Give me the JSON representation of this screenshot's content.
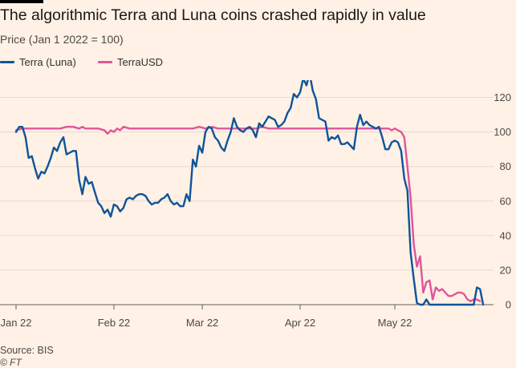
{
  "header": {
    "title": "The algorithmic Terra and Luna coins crashed rapidly in value",
    "subtitle": "Price (Jan 1 2022 = 100)"
  },
  "footer": {
    "source": "Source: BIS",
    "credit": "© FT"
  },
  "colors": {
    "background": "#fff1e5",
    "terra_luna": "#0f5499",
    "terrausd": "#e0559a",
    "gridline": "#e6d9ce",
    "axis_text": "#4d4845"
  },
  "chart_data": {
    "type": "line",
    "title": "The algorithmic Terra and Luna coins crashed rapidly in value",
    "subtitle": "Price (Jan 1 2022 = 100)",
    "ylim": [
      0,
      130
    ],
    "yticks": [
      0,
      20,
      40,
      60,
      80,
      100,
      120
    ],
    "xticks": [
      {
        "label": "Jan 22",
        "day": 0
      },
      {
        "label": "Feb 22",
        "day": 31
      },
      {
        "label": "Mar 22",
        "day": 59
      },
      {
        "label": "Apr 22",
        "day": 90
      },
      {
        "label": "May 22",
        "day": 120
      }
    ],
    "x_unit": "days since Jan 1 2022",
    "grid": true,
    "legend_position": "top-left",
    "series": [
      {
        "name": "Terra (Luna)",
        "color": "#0f5499",
        "points": [
          [
            0,
            100
          ],
          [
            1,
            103
          ],
          [
            2,
            103
          ],
          [
            3,
            97
          ],
          [
            4,
            85
          ],
          [
            5,
            86
          ],
          [
            6,
            79
          ],
          [
            7,
            73
          ],
          [
            8,
            77
          ],
          [
            9,
            76
          ],
          [
            10,
            80
          ],
          [
            11,
            85
          ],
          [
            12,
            91
          ],
          [
            13,
            89
          ],
          [
            14,
            94
          ],
          [
            15,
            97
          ],
          [
            16,
            87
          ],
          [
            17,
            88
          ],
          [
            18,
            89
          ],
          [
            19,
            89
          ],
          [
            20,
            72
          ],
          [
            21,
            64
          ],
          [
            22,
            74
          ],
          [
            23,
            70
          ],
          [
            24,
            71
          ],
          [
            25,
            65
          ],
          [
            26,
            59
          ],
          [
            27,
            57
          ],
          [
            28,
            53
          ],
          [
            29,
            55
          ],
          [
            30,
            51
          ],
          [
            31,
            58
          ],
          [
            32,
            57
          ],
          [
            33,
            54
          ],
          [
            34,
            56
          ],
          [
            35,
            61
          ],
          [
            36,
            62
          ],
          [
            37,
            61
          ],
          [
            38,
            63
          ],
          [
            39,
            64
          ],
          [
            40,
            64
          ],
          [
            41,
            63
          ],
          [
            42,
            60
          ],
          [
            43,
            58
          ],
          [
            44,
            59
          ],
          [
            45,
            59
          ],
          [
            46,
            61
          ],
          [
            47,
            62
          ],
          [
            48,
            64
          ],
          [
            49,
            60
          ],
          [
            50,
            58
          ],
          [
            51,
            59
          ],
          [
            52,
            57
          ],
          [
            53,
            57
          ],
          [
            54,
            64
          ],
          [
            55,
            60
          ],
          [
            56,
            84
          ],
          [
            57,
            80
          ],
          [
            58,
            92
          ],
          [
            59,
            88
          ],
          [
            60,
            100
          ],
          [
            61,
            103
          ],
          [
            62,
            102
          ],
          [
            63,
            97
          ],
          [
            64,
            95
          ],
          [
            65,
            91
          ],
          [
            66,
            89
          ],
          [
            67,
            95
          ],
          [
            68,
            100
          ],
          [
            69,
            108
          ],
          [
            70,
            103
          ],
          [
            71,
            101
          ],
          [
            72,
            100
          ],
          [
            73,
            102
          ],
          [
            74,
            103
          ],
          [
            75,
            101
          ],
          [
            76,
            97
          ],
          [
            77,
            105
          ],
          [
            78,
            103
          ],
          [
            79,
            106
          ],
          [
            80,
            109
          ],
          [
            81,
            108
          ],
          [
            82,
            107
          ],
          [
            83,
            103
          ],
          [
            84,
            104
          ],
          [
            85,
            106
          ],
          [
            86,
            111
          ],
          [
            87,
            114
          ],
          [
            88,
            122
          ],
          [
            89,
            120
          ],
          [
            90,
            123
          ],
          [
            91,
            131
          ],
          [
            92,
            127
          ],
          [
            93,
            134
          ],
          [
            94,
            124
          ],
          [
            95,
            119
          ],
          [
            96,
            108
          ],
          [
            97,
            107
          ],
          [
            98,
            106
          ],
          [
            99,
            95
          ],
          [
            100,
            97
          ],
          [
            101,
            96
          ],
          [
            102,
            98
          ],
          [
            103,
            93
          ],
          [
            104,
            93
          ],
          [
            105,
            94
          ],
          [
            106,
            92
          ],
          [
            107,
            90
          ],
          [
            108,
            103
          ],
          [
            109,
            110
          ],
          [
            110,
            104
          ],
          [
            111,
            106
          ],
          [
            112,
            104
          ],
          [
            113,
            103
          ],
          [
            114,
            102
          ],
          [
            115,
            103
          ],
          [
            116,
            97
          ],
          [
            117,
            90
          ],
          [
            118,
            90
          ],
          [
            119,
            94
          ],
          [
            120,
            95
          ],
          [
            121,
            94
          ],
          [
            122,
            89
          ],
          [
            123,
            73
          ],
          [
            124,
            66
          ],
          [
            125,
            30
          ],
          [
            126,
            15
          ],
          [
            127,
            1
          ],
          [
            128,
            0
          ],
          [
            129,
            0
          ],
          [
            130,
            3
          ],
          [
            131,
            0
          ],
          [
            132,
            0
          ],
          [
            133,
            0
          ],
          [
            134,
            0
          ],
          [
            135,
            0
          ],
          [
            136,
            0
          ],
          [
            137,
            0
          ],
          [
            138,
            0
          ],
          [
            139,
            0
          ],
          [
            140,
            0
          ],
          [
            141,
            0
          ],
          [
            142,
            0
          ],
          [
            143,
            0
          ],
          [
            144,
            0
          ],
          [
            145,
            0
          ],
          [
            146,
            10
          ],
          [
            147,
            9
          ],
          [
            148,
            0
          ]
        ]
      },
      {
        "name": "TerraUSD",
        "color": "#e0559a",
        "points": [
          [
            0,
            101
          ],
          [
            2,
            102
          ],
          [
            4,
            102
          ],
          [
            6,
            102
          ],
          [
            8,
            102
          ],
          [
            10,
            102
          ],
          [
            12,
            102
          ],
          [
            14,
            102
          ],
          [
            16,
            103
          ],
          [
            18,
            103
          ],
          [
            20,
            102
          ],
          [
            21,
            103
          ],
          [
            22,
            102
          ],
          [
            24,
            102
          ],
          [
            26,
            102
          ],
          [
            28,
            101
          ],
          [
            29,
            99
          ],
          [
            30,
            101
          ],
          [
            31,
            100
          ],
          [
            32,
            102
          ],
          [
            33,
            101
          ],
          [
            34,
            103
          ],
          [
            36,
            102
          ],
          [
            38,
            102
          ],
          [
            40,
            102
          ],
          [
            42,
            102
          ],
          [
            44,
            102
          ],
          [
            46,
            102
          ],
          [
            48,
            102
          ],
          [
            50,
            102
          ],
          [
            52,
            102
          ],
          [
            54,
            102
          ],
          [
            56,
            102
          ],
          [
            58,
            103
          ],
          [
            60,
            102
          ],
          [
            62,
            103
          ],
          [
            64,
            102
          ],
          [
            66,
            102
          ],
          [
            68,
            102
          ],
          [
            70,
            102
          ],
          [
            72,
            102
          ],
          [
            74,
            102
          ],
          [
            76,
            102
          ],
          [
            78,
            103
          ],
          [
            80,
            102
          ],
          [
            82,
            102
          ],
          [
            84,
            102
          ],
          [
            86,
            102
          ],
          [
            88,
            102
          ],
          [
            90,
            102
          ],
          [
            92,
            102
          ],
          [
            94,
            102
          ],
          [
            96,
            102
          ],
          [
            98,
            102
          ],
          [
            100,
            102
          ],
          [
            102,
            102
          ],
          [
            104,
            102
          ],
          [
            106,
            102
          ],
          [
            108,
            102
          ],
          [
            110,
            102
          ],
          [
            112,
            102
          ],
          [
            114,
            102
          ],
          [
            116,
            102
          ],
          [
            118,
            102
          ],
          [
            119,
            101
          ],
          [
            120,
            102
          ],
          [
            121,
            101
          ],
          [
            122,
            100
          ],
          [
            123,
            97
          ],
          [
            124,
            80
          ],
          [
            125,
            62
          ],
          [
            126,
            35
          ],
          [
            127,
            22
          ],
          [
            128,
            28
          ],
          [
            129,
            7
          ],
          [
            130,
            13
          ],
          [
            131,
            14
          ],
          [
            132,
            3
          ],
          [
            133,
            10
          ],
          [
            134,
            8
          ],
          [
            135,
            9
          ],
          [
            136,
            7
          ],
          [
            137,
            5
          ],
          [
            138,
            5
          ],
          [
            139,
            6
          ],
          [
            140,
            7
          ],
          [
            141,
            7
          ],
          [
            142,
            6
          ],
          [
            143,
            3
          ],
          [
            144,
            2
          ],
          [
            145,
            3
          ],
          [
            146,
            3
          ],
          [
            147,
            2
          ]
        ]
      }
    ]
  }
}
